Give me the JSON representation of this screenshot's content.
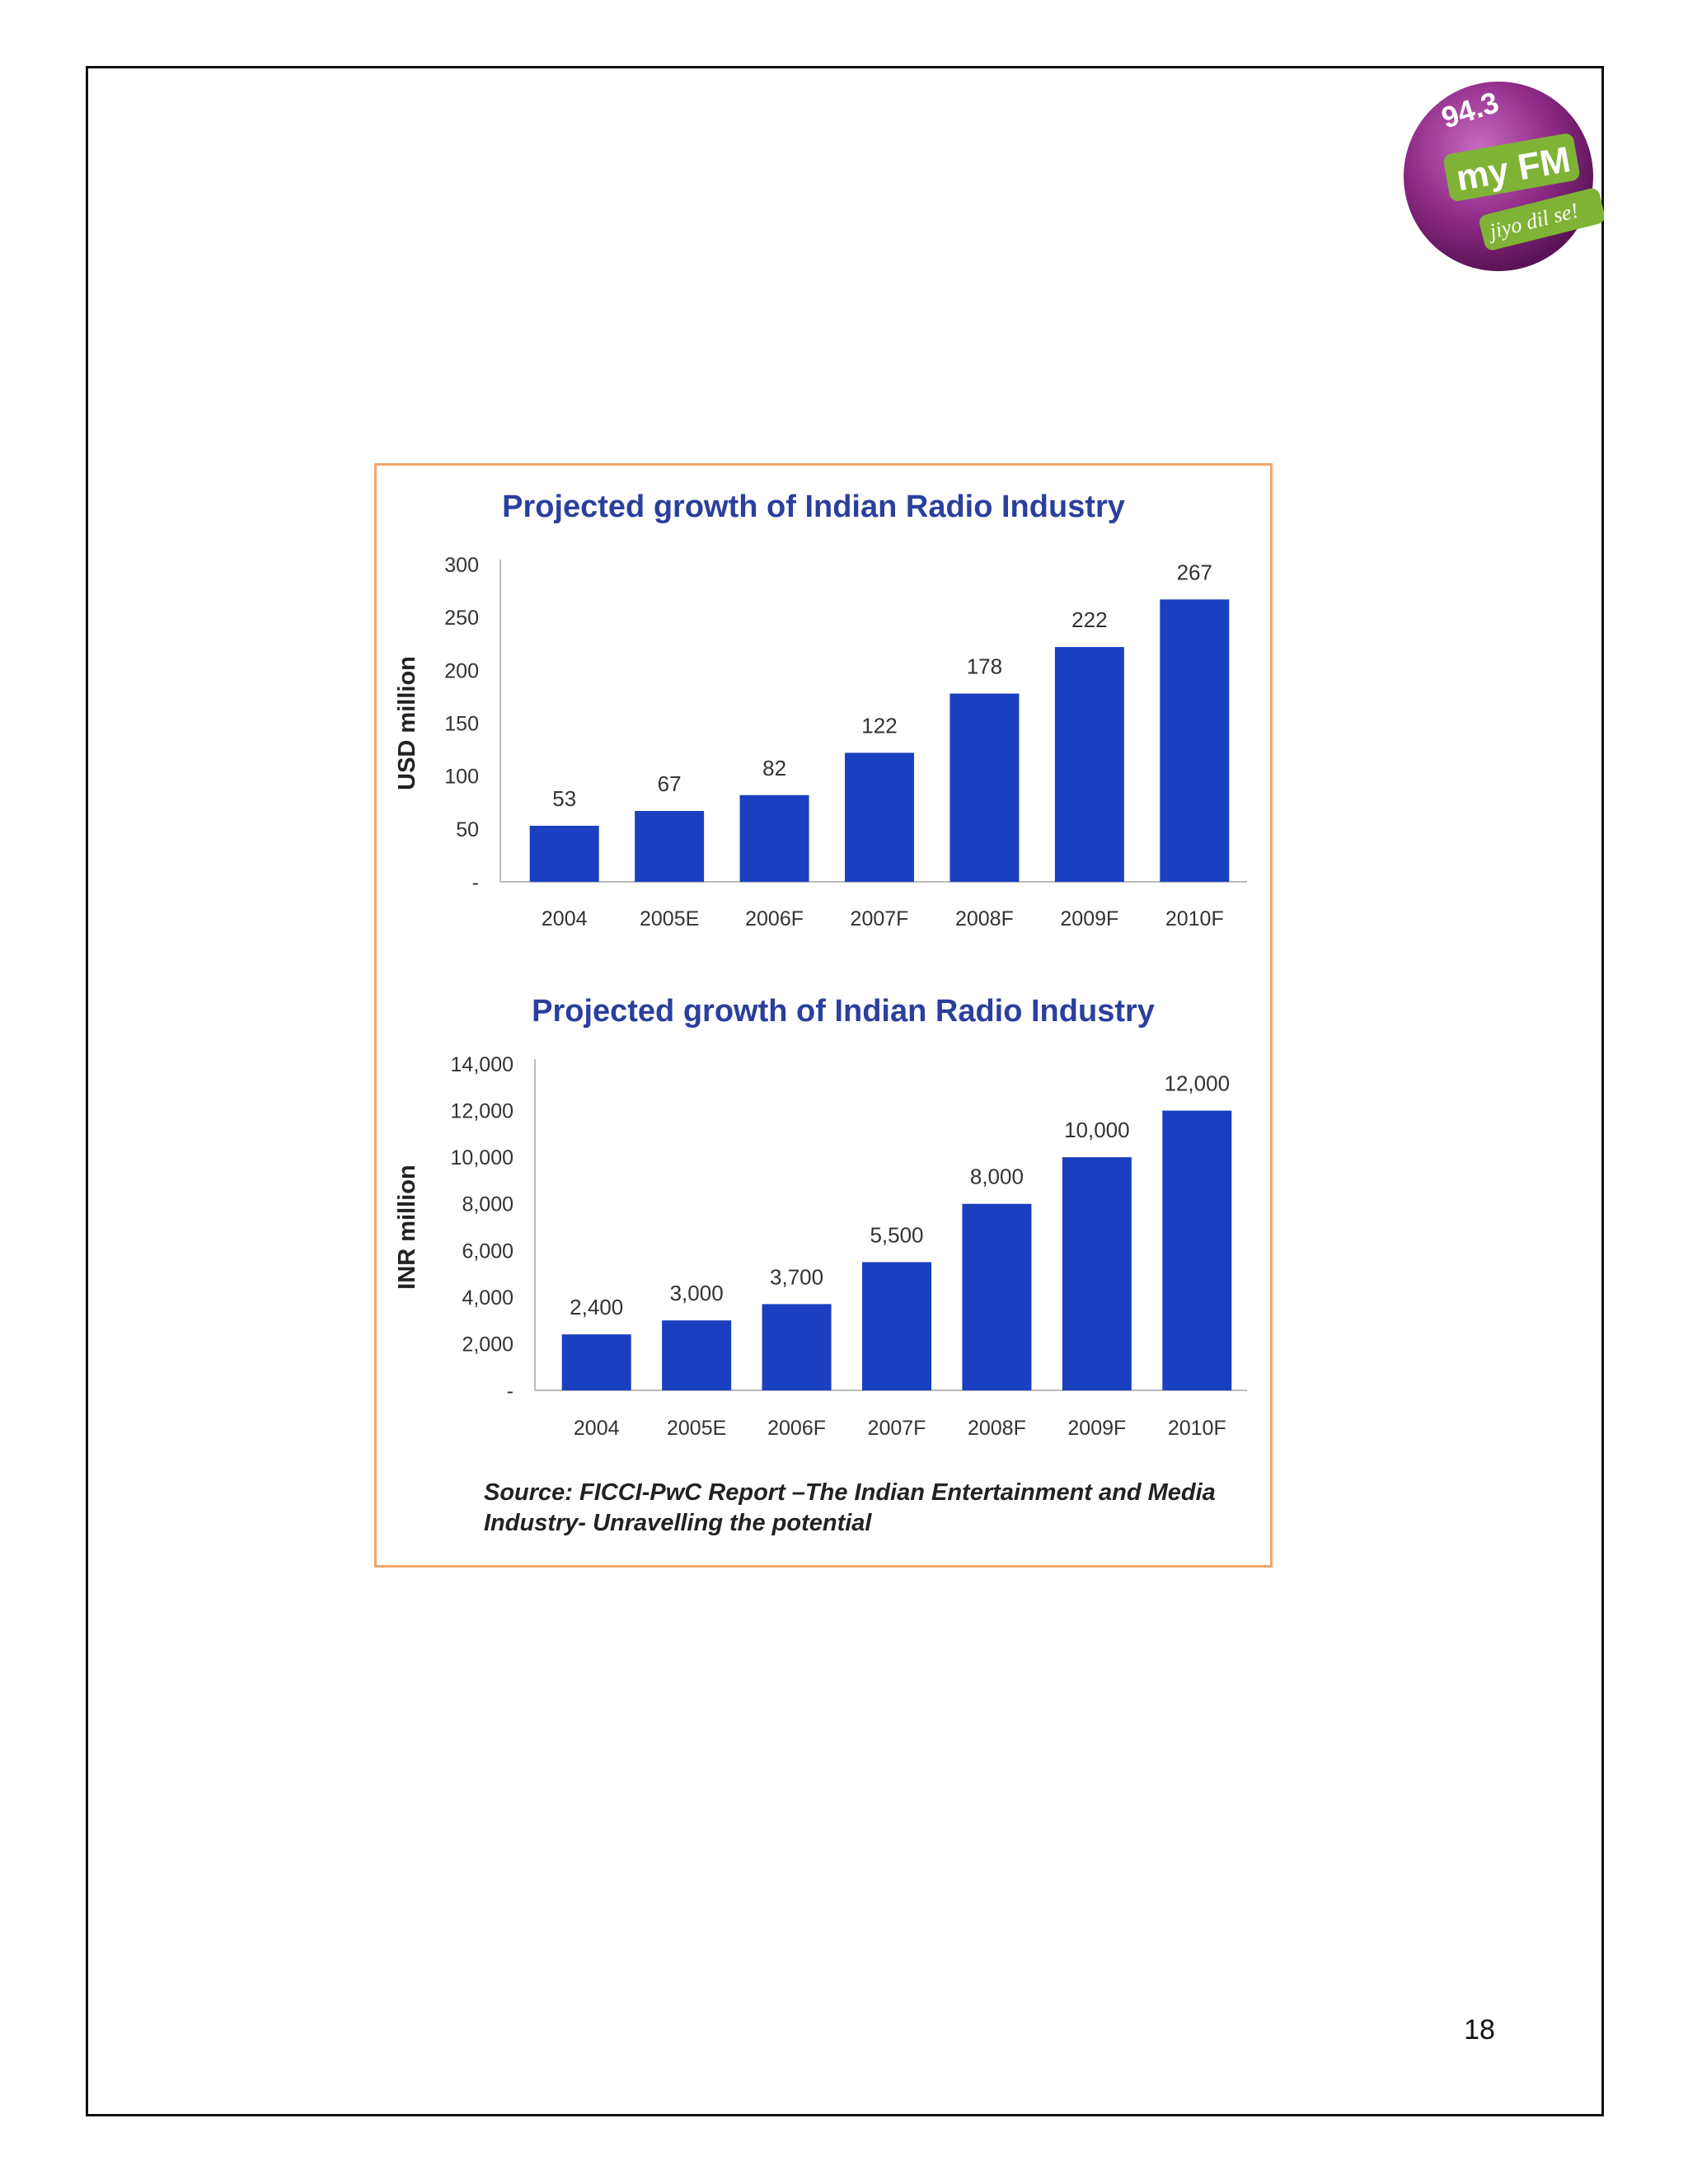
{
  "page": {
    "number": "18"
  },
  "logo": {
    "frequency": "94.3",
    "brand": "my FM",
    "tagline": "jiyo dil se!",
    "colors": {
      "disc": "#8e2a86",
      "ribbon": "#7fb336",
      "text": "#ffffff"
    }
  },
  "colors": {
    "bar": "#1a3fc0",
    "frame": "#f2a66b",
    "title": "#2a3f9e"
  },
  "source_note": "Source: FICCI-PwC Report –The Indian Entertainment and Media Industry- Unravelling the potential",
  "chart_data": [
    {
      "type": "bar",
      "title": "Projected growth of Indian Radio Industry",
      "xlabel": "",
      "ylabel": "USD million",
      "categories": [
        "2004",
        "2005E",
        "2006F",
        "2007F",
        "2008F",
        "2009F",
        "2010F"
      ],
      "values": [
        53,
        67,
        82,
        122,
        178,
        222,
        267
      ],
      "value_labels": [
        "53",
        "67",
        "82",
        "122",
        "178",
        "222",
        "267"
      ],
      "ylim": [
        0,
        300
      ],
      "yticks": [
        0,
        50,
        100,
        150,
        200,
        250,
        300
      ],
      "ytick_labels": [
        "-",
        "50",
        "100",
        "150",
        "200",
        "250",
        "300"
      ],
      "grid": false,
      "legend": "none"
    },
    {
      "type": "bar",
      "title": "Projected growth of Indian Radio Industry",
      "xlabel": "",
      "ylabel": "INR million",
      "categories": [
        "2004",
        "2005E",
        "2006F",
        "2007F",
        "2008F",
        "2009F",
        "2010F"
      ],
      "values": [
        2400,
        3000,
        3700,
        5500,
        8000,
        10000,
        12000
      ],
      "value_labels": [
        "2,400",
        "3,000",
        "3,700",
        "5,500",
        "8,000",
        "10,000",
        "12,000"
      ],
      "ylim": [
        0,
        14000
      ],
      "yticks": [
        0,
        2000,
        4000,
        6000,
        8000,
        10000,
        12000,
        14000
      ],
      "ytick_labels": [
        "-",
        "2,000",
        "4,000",
        "6,000",
        "8,000",
        "10,000",
        "12,000",
        "14,000"
      ],
      "grid": false,
      "legend": "none"
    }
  ]
}
